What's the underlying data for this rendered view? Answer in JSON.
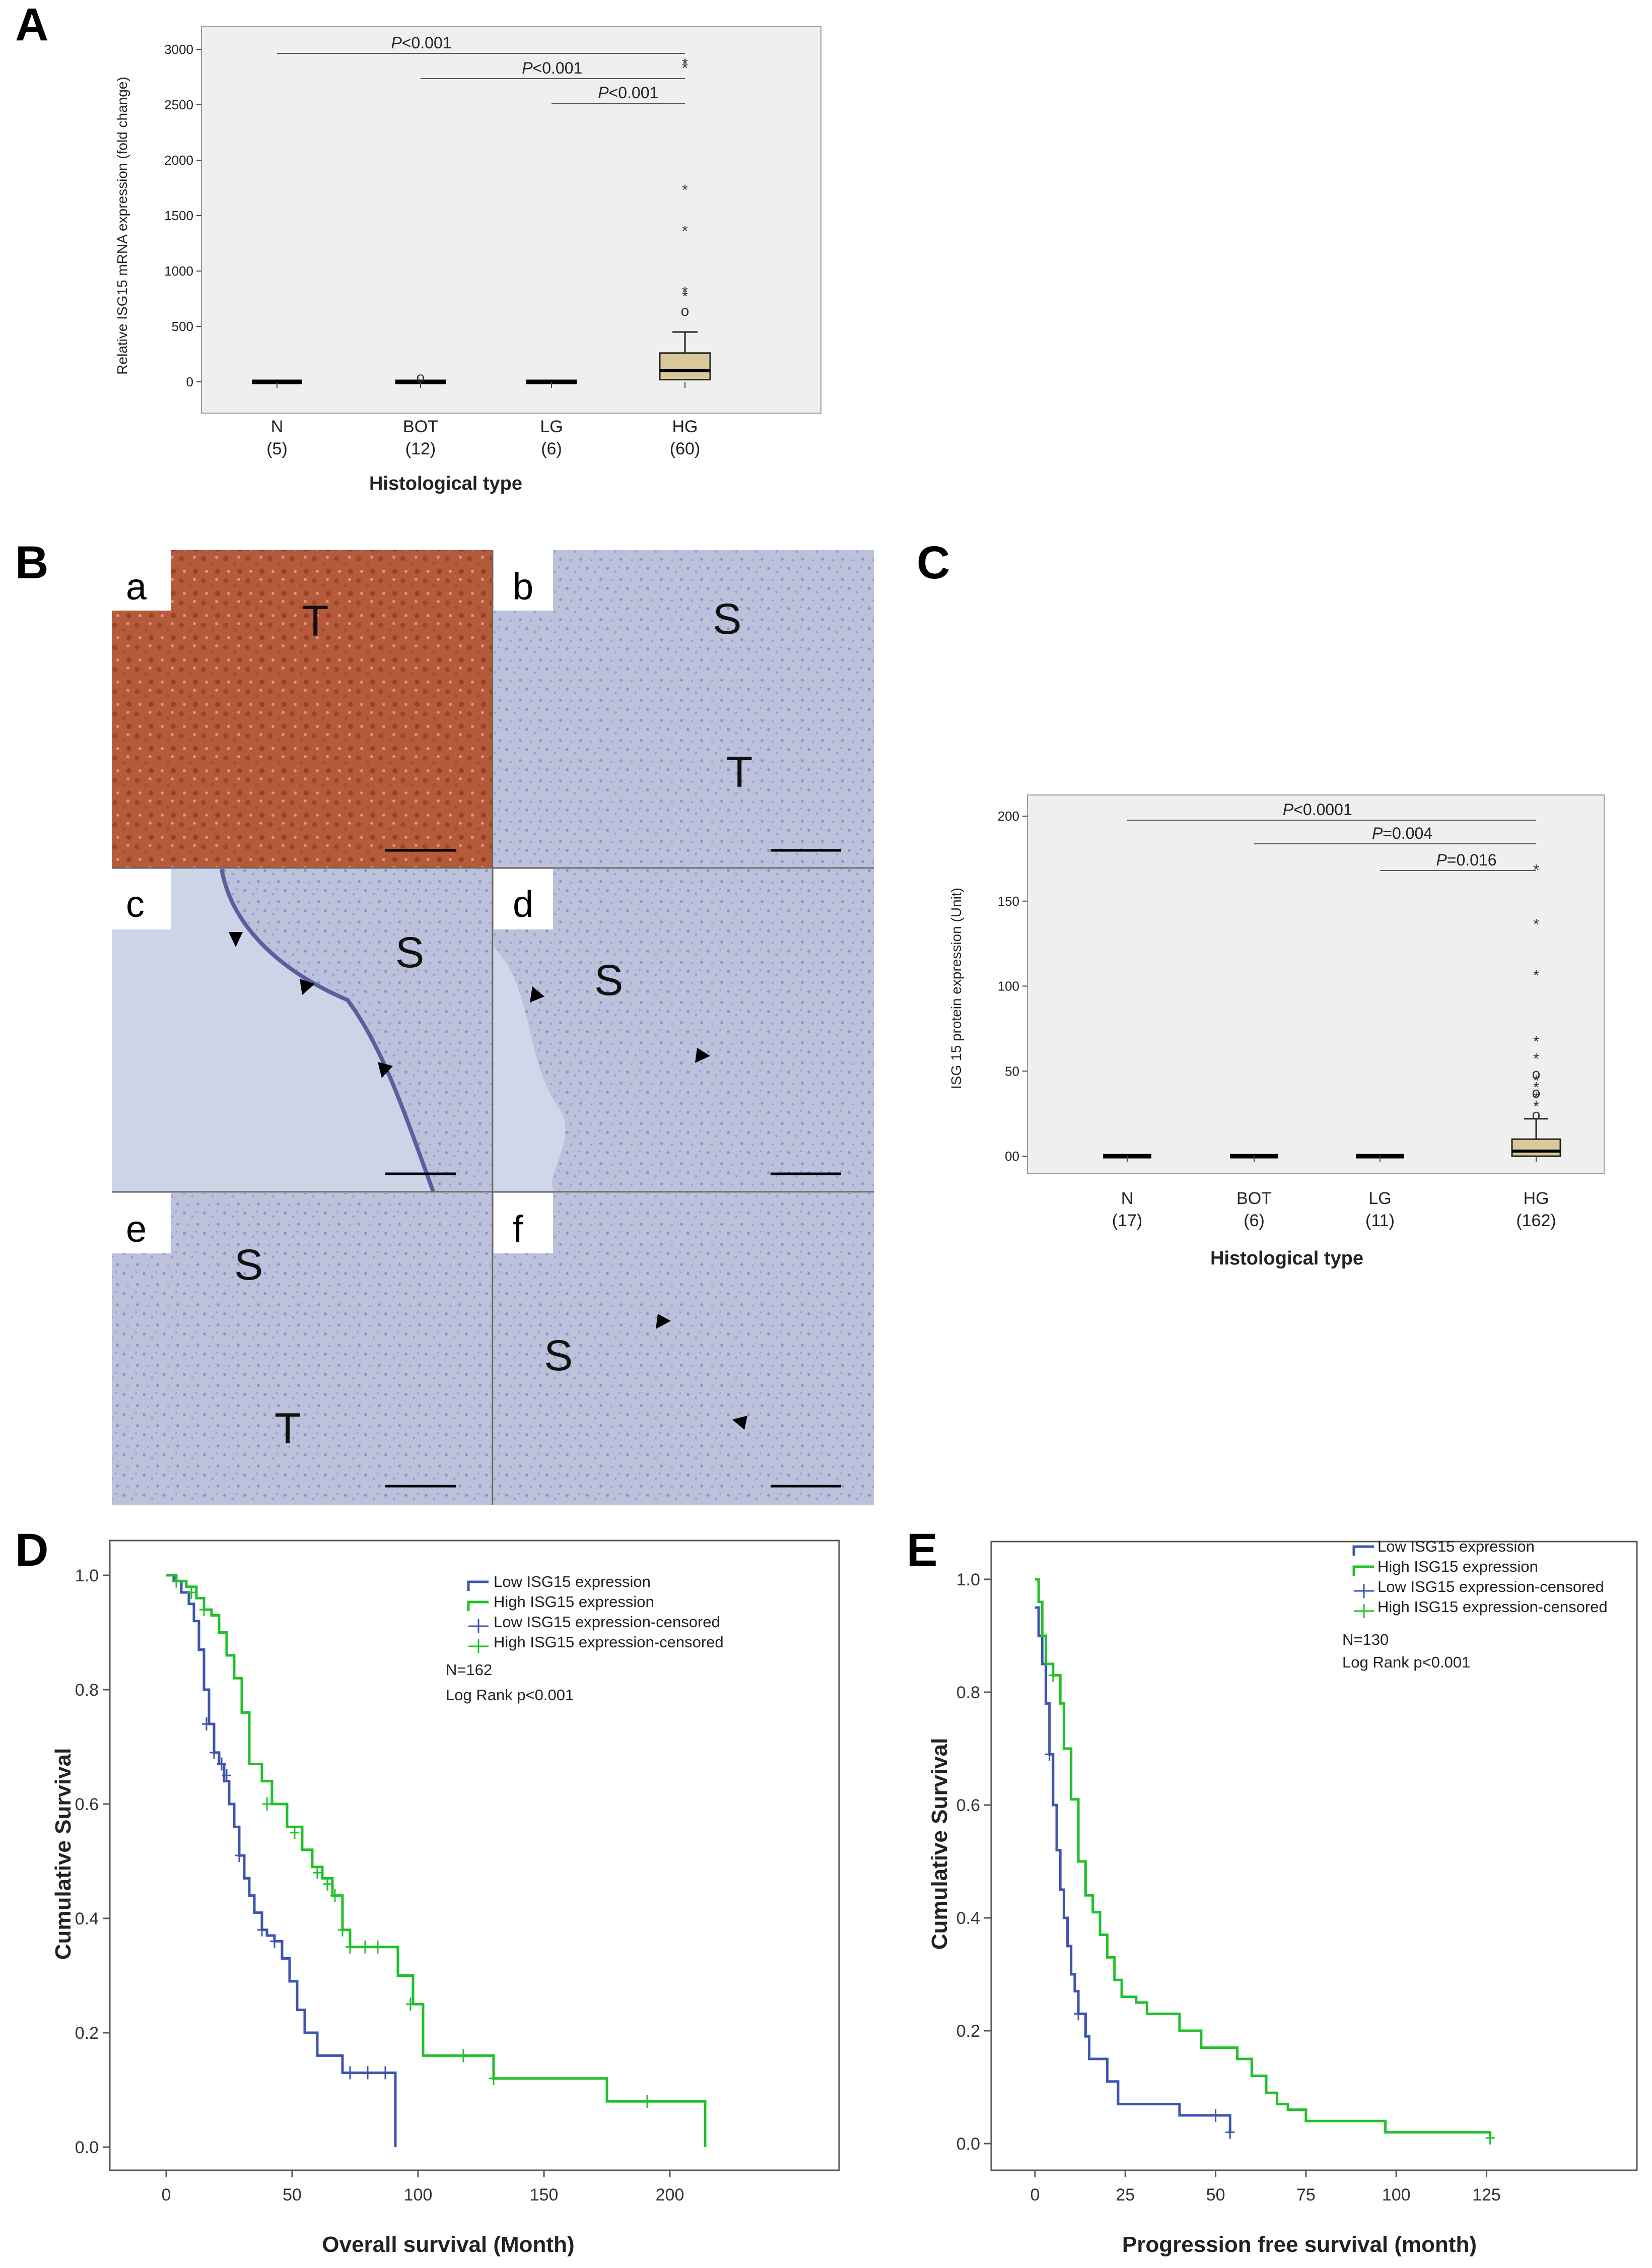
{
  "panels": {
    "A": {
      "letter": "A",
      "ylabel": "Relative ISG15 mRNA expression (fold change)",
      "xlabel": "Histological type",
      "yticks": [
        "0",
        "500",
        "1000",
        "1500",
        "2000",
        "2500",
        "3000"
      ],
      "categories": [
        {
          "name": "N",
          "n": "(5)"
        },
        {
          "name": "BOT",
          "n": "(12)"
        },
        {
          "name": "LG",
          "n": "(6)"
        },
        {
          "name": "HG",
          "n": "(60)"
        }
      ],
      "comparisons": [
        {
          "p": "P",
          "text": "<0.001"
        },
        {
          "p": "P",
          "text": "<0.001"
        },
        {
          "p": "P",
          "text": "<0.001"
        }
      ]
    },
    "B": {
      "letter": "B",
      "images": [
        {
          "sub": "a",
          "labels": [
            "T"
          ]
        },
        {
          "sub": "b",
          "labels": [
            "S",
            "T"
          ]
        },
        {
          "sub": "c",
          "labels": [
            "S"
          ]
        },
        {
          "sub": "d",
          "labels": [
            "S"
          ]
        },
        {
          "sub": "e",
          "labels": [
            "S",
            "T"
          ]
        },
        {
          "sub": "f",
          "labels": [
            "S"
          ]
        }
      ]
    },
    "C": {
      "letter": "C",
      "ylabel": "ISG 15 protein expression (Unit)",
      "xlabel": "Histological type",
      "yticks": [
        "00",
        "50",
        "100",
        "150",
        "200"
      ],
      "categories": [
        {
          "name": "N",
          "n": "(17)"
        },
        {
          "name": "BOT",
          "n": "(6)"
        },
        {
          "name": "LG",
          "n": "(11)"
        },
        {
          "name": "HG",
          "n": "(162)"
        }
      ],
      "comparisons": [
        {
          "p": "P",
          "text": "<0.0001"
        },
        {
          "p": "P",
          "text": "=0.004"
        },
        {
          "p": "P",
          "text": "=0.016"
        }
      ]
    },
    "D": {
      "letter": "D",
      "xlabel": "Overall survival (Month)",
      "ylabel": "Cumulative Survival",
      "xticks": [
        "0",
        "50",
        "100",
        "150",
        "200"
      ],
      "yticks": [
        "0.0",
        "0.2",
        "0.4",
        "0.6",
        "0.8",
        "1.0"
      ],
      "legend": [
        "Low ISG15 expression",
        "High ISG15 expression",
        "Low ISG15 expression-censored",
        "High ISG15 expression-censored"
      ],
      "n_text": "N=162",
      "logrank": "Log Rank p<0.001"
    },
    "E": {
      "letter": "E",
      "xlabel": "Progression free survival (month)",
      "ylabel": "Cumulative Survival",
      "xticks": [
        "0",
        "25",
        "50",
        "75",
        "100",
        "125"
      ],
      "yticks": [
        "0.0",
        "0.2",
        "0.4",
        "0.6",
        "0.8",
        "1.0"
      ],
      "legend": [
        "Low ISG15 expression",
        "High ISG15 expression",
        "Low ISG15 expression-censored",
        "High ISG15 expression-censored"
      ],
      "n_text": "N=130",
      "logrank": "Log Rank p<0.001"
    }
  },
  "colors": {
    "low": "#3d55b0",
    "high": "#1fc12a",
    "box_fill": "#d9c99a",
    "plot_bg": "#efefef"
  },
  "chart_data": [
    {
      "type": "box",
      "panel": "A",
      "ylabel": "Relative ISG15 mRNA expression (fold change)",
      "xlabel": "Histological type",
      "ylim": [
        0,
        3000
      ],
      "categories": [
        "N",
        "BOT",
        "LG",
        "HG"
      ],
      "medians": [
        0,
        0,
        0,
        100
      ],
      "q1": [
        0,
        0,
        0,
        20
      ],
      "q3": [
        0,
        0,
        0,
        260
      ],
      "whisker_high": [
        0,
        0,
        0,
        450
      ],
      "outliers": [
        [],
        [
          50
        ],
        [],
        [
          650,
          780,
          820,
          1370,
          1740,
          2840,
          2880
        ]
      ]
    },
    {
      "type": "box",
      "panel": "C",
      "ylabel": "ISG 15 protein expression (Unit)",
      "xlabel": "Histological type",
      "ylim": [
        0,
        200
      ],
      "categories": [
        "N",
        "BOT",
        "LG",
        "HG"
      ],
      "medians": [
        0,
        0,
        0,
        3
      ],
      "q1": [
        0,
        0,
        0,
        0
      ],
      "q3": [
        0,
        0,
        0,
        10
      ],
      "whisker_high": [
        0,
        0,
        0,
        22
      ],
      "outliers": [
        [],
        [],
        [],
        [
          25,
          30,
          35,
          38,
          41,
          45,
          49,
          58,
          68,
          107,
          137,
          169
        ]
      ]
    },
    {
      "type": "line",
      "panel": "D",
      "step": true,
      "xlabel": "Overall survival (Month)",
      "ylabel": "Cumulative Survival",
      "xlim": [
        0,
        215
      ],
      "ylim": [
        0,
        1
      ],
      "series": [
        {
          "name": "Low ISG15 expression",
          "points": [
            [
              0,
              1
            ],
            [
              3,
              0.99
            ],
            [
              6,
              0.97
            ],
            [
              9,
              0.95
            ],
            [
              11,
              0.92
            ],
            [
              13,
              0.87
            ],
            [
              15,
              0.8
            ],
            [
              17,
              0.74
            ],
            [
              19,
              0.69
            ],
            [
              21,
              0.67
            ],
            [
              23,
              0.64
            ],
            [
              25,
              0.6
            ],
            [
              27,
              0.56
            ],
            [
              29,
              0.51
            ],
            [
              31,
              0.47
            ],
            [
              33,
              0.44
            ],
            [
              35,
              0.41
            ],
            [
              38,
              0.38
            ],
            [
              40,
              0.37
            ],
            [
              43,
              0.36
            ],
            [
              46,
              0.33
            ],
            [
              49,
              0.29
            ],
            [
              52,
              0.24
            ],
            [
              55,
              0.2
            ],
            [
              60,
              0.16
            ],
            [
              70,
              0.13
            ],
            [
              90,
              0.13
            ],
            [
              91,
              0
            ]
          ],
          "censored": [
            [
              16,
              0.74
            ],
            [
              19,
              0.69
            ],
            [
              22,
              0.67
            ],
            [
              24,
              0.65
            ],
            [
              29,
              0.51
            ],
            [
              38,
              0.38
            ],
            [
              43,
              0.36
            ],
            [
              73,
              0.13
            ],
            [
              80,
              0.13
            ],
            [
              87,
              0.13
            ]
          ]
        },
        {
          "name": "High ISG15 expression",
          "points": [
            [
              0,
              1
            ],
            [
              4,
              0.99
            ],
            [
              8,
              0.98
            ],
            [
              12,
              0.96
            ],
            [
              15,
              0.94
            ],
            [
              18,
              0.93
            ],
            [
              21,
              0.9
            ],
            [
              24,
              0.86
            ],
            [
              27,
              0.82
            ],
            [
              30,
              0.76
            ],
            [
              33,
              0.67
            ],
            [
              38,
              0.64
            ],
            [
              42,
              0.6
            ],
            [
              48,
              0.56
            ],
            [
              54,
              0.52
            ],
            [
              58,
              0.49
            ],
            [
              62,
              0.47
            ],
            [
              66,
              0.44
            ],
            [
              70,
              0.38
            ],
            [
              73,
              0.35
            ],
            [
              88,
              0.35
            ],
            [
              92,
              0.3
            ],
            [
              98,
              0.25
            ],
            [
              102,
              0.16
            ],
            [
              130,
              0.12
            ],
            [
              175,
              0.08
            ],
            [
              213,
              0.08
            ],
            [
              214,
              0
            ]
          ],
          "censored": [
            [
              4,
              0.99
            ],
            [
              10,
              0.97
            ],
            [
              15,
              0.94
            ],
            [
              40,
              0.6
            ],
            [
              51,
              0.55
            ],
            [
              60,
              0.48
            ],
            [
              64,
              0.46
            ],
            [
              67,
              0.44
            ],
            [
              70,
              0.38
            ],
            [
              73,
              0.35
            ],
            [
              79,
              0.35
            ],
            [
              84,
              0.35
            ],
            [
              97,
              0.25
            ],
            [
              118,
              0.16
            ],
            [
              130,
              0.12
            ],
            [
              191,
              0.08
            ]
          ]
        }
      ]
    },
    {
      "type": "line",
      "panel": "E",
      "step": true,
      "xlabel": "Progression free survival (month)",
      "ylabel": "Cumulative Survival",
      "xlim": [
        0,
        128
      ],
      "ylim": [
        0,
        1
      ],
      "series": [
        {
          "name": "Low ISG15 expression",
          "points": [
            [
              0,
              0.95
            ],
            [
              1,
              0.9
            ],
            [
              2,
              0.85
            ],
            [
              3,
              0.78
            ],
            [
              4,
              0.69
            ],
            [
              5,
              0.6
            ],
            [
              6,
              0.52
            ],
            [
              7,
              0.45
            ],
            [
              8,
              0.4
            ],
            [
              9,
              0.35
            ],
            [
              10,
              0.3
            ],
            [
              11,
              0.27
            ],
            [
              12,
              0.23
            ],
            [
              14,
              0.19
            ],
            [
              15,
              0.15
            ],
            [
              20,
              0.11
            ],
            [
              23,
              0.07
            ],
            [
              40,
              0.05
            ],
            [
              53,
              0.05
            ],
            [
              54,
              0.02
            ]
          ],
          "censored": [
            [
              4,
              0.69
            ],
            [
              12,
              0.23
            ],
            [
              50,
              0.05
            ],
            [
              54,
              0.02
            ]
          ]
        },
        {
          "name": "High ISG15 expression",
          "points": [
            [
              0,
              1
            ],
            [
              1,
              0.96
            ],
            [
              2,
              0.9
            ],
            [
              3,
              0.85
            ],
            [
              5,
              0.83
            ],
            [
              7,
              0.78
            ],
            [
              8,
              0.7
            ],
            [
              10,
              0.61
            ],
            [
              12,
              0.5
            ],
            [
              14,
              0.44
            ],
            [
              16,
              0.41
            ],
            [
              18,
              0.37
            ],
            [
              20,
              0.33
            ],
            [
              22,
              0.29
            ],
            [
              24,
              0.26
            ],
            [
              28,
              0.25
            ],
            [
              31,
              0.23
            ],
            [
              40,
              0.2
            ],
            [
              46,
              0.17
            ],
            [
              56,
              0.15
            ],
            [
              60,
              0.12
            ],
            [
              64,
              0.09
            ],
            [
              67,
              0.07
            ],
            [
              70,
              0.06
            ],
            [
              75,
              0.04
            ],
            [
              97,
              0.02
            ],
            [
              126,
              0.01
            ]
          ],
          "censored": [
            [
              5,
              0.83
            ],
            [
              126,
              0.01
            ]
          ]
        }
      ]
    }
  ]
}
